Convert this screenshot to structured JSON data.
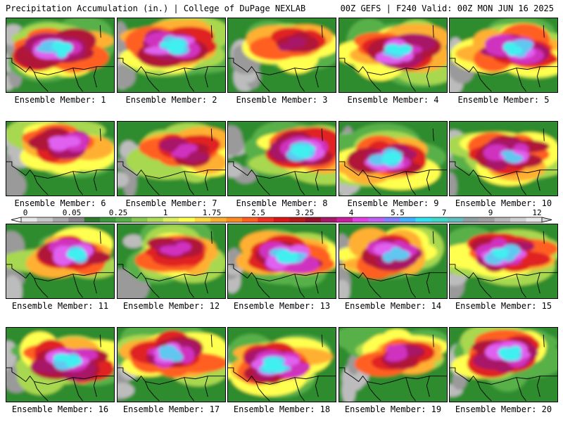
{
  "header": {
    "title": "Precipitation Accumulation (in.) | College of DuPage NEXLAB",
    "run_info": "00Z GEFS | F240 Valid: 00Z MON JUN 16 2025"
  },
  "panels": [
    {
      "label": "Ensemble Member: 1",
      "mx": 0.48,
      "my": 0.4,
      "int": 1.0,
      "dry": 0.15
    },
    {
      "label": "Ensemble Member: 2",
      "mx": 0.5,
      "my": 0.38,
      "int": 0.95,
      "dry": 0.1
    },
    {
      "label": "Ensemble Member: 3",
      "mx": 0.6,
      "my": 0.35,
      "int": 0.55,
      "dry": 0.45
    },
    {
      "label": "Ensemble Member: 4",
      "mx": 0.55,
      "my": 0.45,
      "int": 1.0,
      "dry": 0.05
    },
    {
      "label": "Ensemble Member: 5",
      "mx": 0.62,
      "my": 0.42,
      "int": 0.95,
      "dry": 0.2
    },
    {
      "label": "Ensemble Member: 6",
      "mx": 0.55,
      "my": 0.3,
      "int": 0.75,
      "dry": 0.35
    },
    {
      "label": "Ensemble Member: 7",
      "mx": 0.62,
      "my": 0.4,
      "int": 0.7,
      "dry": 0.3
    },
    {
      "label": "Ensemble Member: 8",
      "mx": 0.7,
      "my": 0.4,
      "int": 1.0,
      "dry": 0.4
    },
    {
      "label": "Ensemble Member: 9",
      "mx": 0.45,
      "my": 0.5,
      "int": 1.0,
      "dry": 0.15
    },
    {
      "label": "Ensemble Member: 10",
      "mx": 0.55,
      "my": 0.45,
      "int": 0.9,
      "dry": 0.1
    },
    {
      "label": "Ensemble Member: 11",
      "mx": 0.62,
      "my": 0.4,
      "int": 1.0,
      "dry": 0.1
    },
    {
      "label": "Ensemble Member: 12",
      "mx": 0.55,
      "my": 0.35,
      "int": 0.7,
      "dry": 0.4
    },
    {
      "label": "Ensemble Member: 13",
      "mx": 0.55,
      "my": 0.45,
      "int": 1.0,
      "dry": 0.1
    },
    {
      "label": "Ensemble Member: 14",
      "mx": 0.5,
      "my": 0.4,
      "int": 0.9,
      "dry": 0.1
    },
    {
      "label": "Ensemble Member: 15",
      "mx": 0.5,
      "my": 0.4,
      "int": 0.95,
      "dry": 0.1
    },
    {
      "label": "Ensemble Member: 16",
      "mx": 0.58,
      "my": 0.45,
      "int": 0.95,
      "dry": 0.3
    },
    {
      "label": "Ensemble Member: 17",
      "mx": 0.52,
      "my": 0.35,
      "int": 0.9,
      "dry": 0.2
    },
    {
      "label": "Ensemble Member: 18",
      "mx": 0.45,
      "my": 0.5,
      "int": 1.0,
      "dry": 0.2
    },
    {
      "label": "Ensemble Member: 19",
      "mx": 0.55,
      "my": 0.35,
      "int": 0.7,
      "dry": 0.45
    },
    {
      "label": "Ensemble Member: 20",
      "mx": 0.55,
      "my": 0.35,
      "int": 0.95,
      "dry": 0.4
    }
  ],
  "colorbar": {
    "tick_labels": [
      "0",
      "0.05",
      "0.25",
      "1",
      "1.75",
      "2.5",
      "3.25",
      "4",
      "5.5",
      "7",
      "9",
      "12"
    ],
    "colors": [
      "#e8e8e8",
      "#c8c8c8",
      "#a8a8a8",
      "#888888",
      "#2e7a2e",
      "#3c9a3c",
      "#58b048",
      "#86c850",
      "#b0dc58",
      "#dcf060",
      "#ffff50",
      "#ffd840",
      "#ffb030",
      "#ff8c20",
      "#ff6020",
      "#f03020",
      "#d81818",
      "#b81818",
      "#98102c",
      "#a81868",
      "#c820a0",
      "#e040e0",
      "#c060f0",
      "#8080ff",
      "#40b0ff",
      "#30e0f0",
      "#40d8c8",
      "#60c0c0",
      "#90a0a0",
      "#a0a0a0",
      "#b8b8b8",
      "#d0d0d0",
      "#e8e8e8"
    ]
  }
}
